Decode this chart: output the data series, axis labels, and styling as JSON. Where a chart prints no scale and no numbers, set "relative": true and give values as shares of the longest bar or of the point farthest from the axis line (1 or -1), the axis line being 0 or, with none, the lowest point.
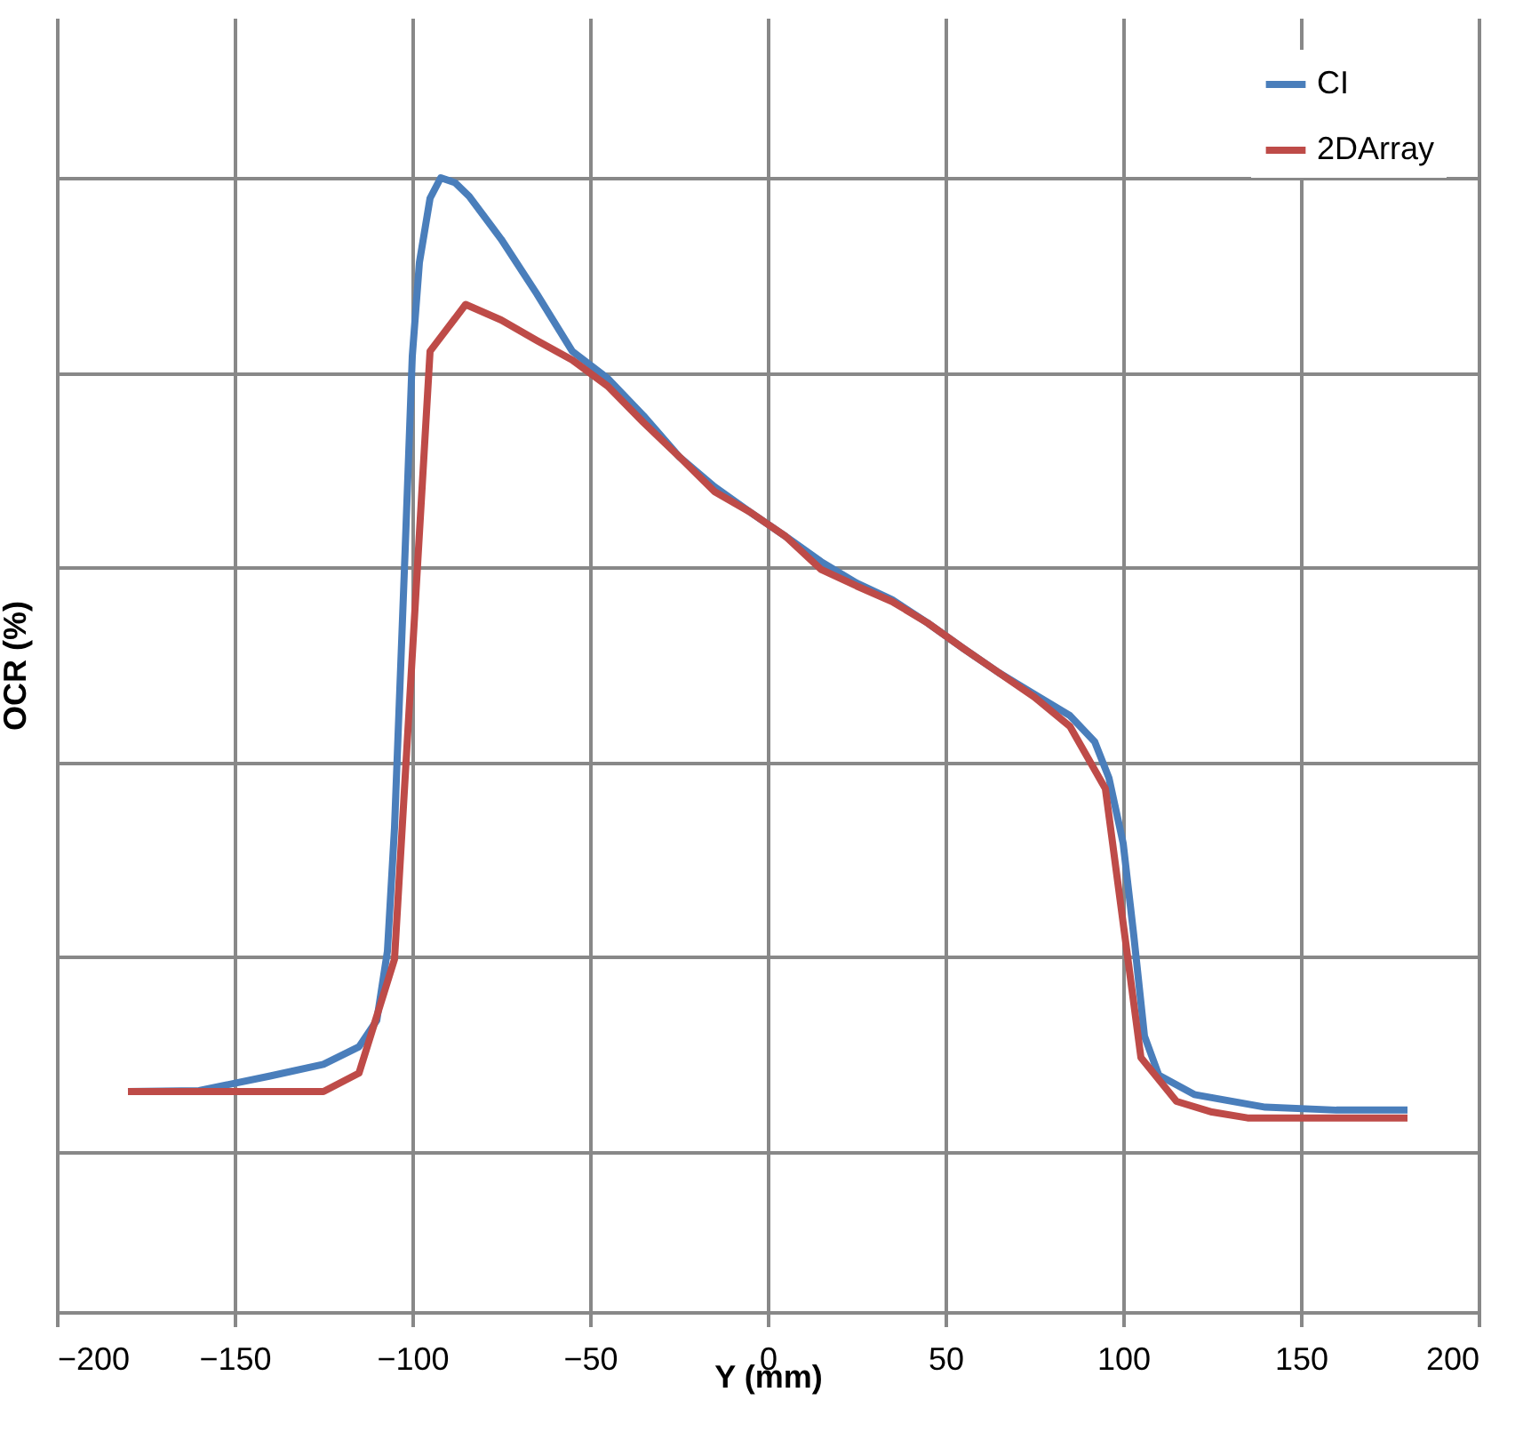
{
  "chart_data": {
    "type": "line",
    "xlabel": "Y (mm)",
    "ylabel": "OCR (%)",
    "relative": true,
    "xlim": [
      -200,
      200
    ],
    "xticks": [
      -200,
      -150,
      -100,
      -50,
      0,
      50,
      100,
      150,
      200
    ],
    "grid": true,
    "legend": "top right",
    "series": [
      {
        "name": "CI",
        "color": "#4a7ebb",
        "x": [
          -180,
          -160,
          -140,
          -125,
          -115,
          -110,
          -107,
          -105,
          -102,
          -100,
          -98,
          -95,
          -92,
          -88,
          -84,
          -75,
          -65,
          -55,
          -45,
          -35,
          -25,
          -15,
          -5,
          5,
          15,
          25,
          35,
          45,
          55,
          65,
          75,
          85,
          92,
          96,
          100,
          103,
          106,
          110,
          120,
          140,
          160,
          180
        ],
        "values": [
          0.062,
          0.063,
          0.078,
          0.09,
          0.108,
          0.135,
          0.206,
          0.333,
          0.619,
          0.817,
          0.913,
          0.979,
          1,
          0.995,
          0.981,
          0.937,
          0.881,
          0.822,
          0.794,
          0.756,
          0.714,
          0.683,
          0.657,
          0.632,
          0.606,
          0.584,
          0.567,
          0.543,
          0.517,
          0.492,
          0.47,
          0.448,
          0.421,
          0.384,
          0.317,
          0.222,
          0.119,
          0.079,
          0.059,
          0.046,
          0.043,
          0.043
        ]
      },
      {
        "name": "2DArray",
        "color": "#be4b48",
        "x": [
          -180,
          -125,
          -115,
          -105,
          -95,
          -85,
          -75,
          -65,
          -55,
          -45,
          -35,
          -25,
          -15,
          -5,
          5,
          15,
          25,
          35,
          45,
          55,
          65,
          75,
          85,
          95,
          105,
          115,
          125,
          135,
          180
        ],
        "values": [
          0.062,
          0.062,
          0.081,
          0.198,
          0.822,
          0.87,
          0.854,
          0.833,
          0.813,
          0.786,
          0.749,
          0.714,
          0.678,
          0.657,
          0.632,
          0.598,
          0.581,
          0.565,
          0.543,
          0.517,
          0.492,
          0.467,
          0.437,
          0.373,
          0.097,
          0.052,
          0.041,
          0.035,
          0.035
        ]
      }
    ]
  }
}
